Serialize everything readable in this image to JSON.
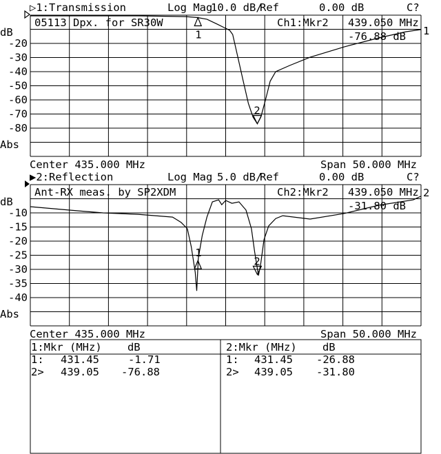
{
  "colors": {
    "background": "#ffffff",
    "foreground": "#000000"
  },
  "channel1": {
    "title": "▷1:Transmission",
    "format": "Log Mag",
    "scale": "10.0 dB/",
    "ref_label": "Ref",
    "ref_value": "0.00 dB",
    "cal_status": "C?",
    "annotation": "05113 Dpx. for SR30W",
    "marker_label": "Ch1:Mkr2",
    "marker_freq": "439.050 MHz",
    "marker_value": "-76.88 dB",
    "ref_marker": "1",
    "y_unit": "dB",
    "y_ticks": [
      "-20",
      "-30",
      "-40",
      "-50",
      "-60",
      "-70",
      "-80"
    ],
    "y_bottom": "Abs",
    "center": "Center 435.000 MHz",
    "span": "Span 50.000 MHz"
  },
  "channel2": {
    "title": "▶2:Reflection",
    "format": "Log Mag",
    "scale": "5.0 dB/",
    "ref_label": "Ref",
    "ref_value": "0.00 dB",
    "cal_status": "C?",
    "annotation": "Ant-RX meas. by SP2XDM",
    "marker_label": "Ch2:Mkr2",
    "marker_freq": "439.050 MHz",
    "marker_value": "-31.80 dB",
    "ref_marker": "2",
    "y_unit": "dB",
    "y_ticks": [
      "-10",
      "-15",
      "-20",
      "-25",
      "-30",
      "-35",
      "-40"
    ],
    "y_bottom": "Abs",
    "center": "Center 435.000 MHz",
    "span": "Span 50.000 MHz"
  },
  "marker_table": [
    {
      "header": "1:Mkr (MHz)    dB",
      "rows": [
        {
          "id": "1:",
          "freq": "431.45",
          "db": "-1.71"
        },
        {
          "id": "2>",
          "freq": "439.05",
          "db": "-76.88"
        }
      ]
    },
    {
      "header": "2:Mkr (MHz)    dB",
      "rows": [
        {
          "id": "1:",
          "freq": "431.45",
          "db": "-26.88"
        },
        {
          "id": "2>",
          "freq": "439.05",
          "db": "-31.80"
        }
      ]
    }
  ],
  "chart_data": [
    {
      "type": "line",
      "title": "1:Transmission",
      "xlabel": "",
      "ylabel": "dB",
      "xlim": [
        410,
        460
      ],
      "ylim": [
        -100,
        0
      ],
      "grid": true,
      "x_divisions": 10,
      "y_divisions": 10,
      "markers": [
        {
          "label": "1",
          "x": 431.45,
          "y": -1.71
        },
        {
          "label": "2",
          "x": 439.05,
          "y": -76.88
        }
      ],
      "x": [
        410,
        423.8,
        429.9,
        431.4,
        432.6,
        433.9,
        434.8,
        435.5,
        435.9,
        436.5,
        437.2,
        437.9,
        438.5,
        439.05,
        439.5,
        440.1,
        440.7,
        441.4,
        443.2,
        445.8,
        450.2,
        454.6,
        458.1,
        460
      ],
      "y": [
        -0.5,
        -0.5,
        -1.0,
        -1.7,
        -2.9,
        -6.3,
        -8.8,
        -10.7,
        -13.7,
        -28.3,
        -45.4,
        -62.4,
        -72.2,
        -76.9,
        -72.2,
        -60.0,
        -46.8,
        -40.0,
        -35.6,
        -29.8,
        -22.4,
        -16.1,
        -11.7,
        -10.2
      ]
    },
    {
      "type": "line",
      "title": "2:Reflection",
      "xlabel": "",
      "ylabel": "dB",
      "xlim": [
        410,
        460
      ],
      "ylim": [
        -50,
        0
      ],
      "grid": true,
      "x_divisions": 10,
      "y_divisions": 10,
      "markers": [
        {
          "label": "1",
          "x": 431.45,
          "y": -26.88
        },
        {
          "label": "2",
          "x": 439.05,
          "y": -31.8
        }
      ],
      "x": [
        410,
        414.9,
        419.3,
        423.8,
        428.2,
        429.3,
        430.1,
        430.6,
        431.1,
        431.3,
        431.4,
        431.5,
        432.0,
        432.6,
        433.3,
        434.1,
        434.5,
        435.0,
        435.8,
        436.7,
        437.6,
        438.3,
        438.7,
        439.2,
        439.5,
        439.9,
        440.5,
        441.4,
        442.3,
        445.8,
        450.2,
        454.6,
        459.0,
        460
      ],
      "y": [
        -7.8,
        -9.0,
        -10.0,
        -10.5,
        -11.5,
        -13.4,
        -15.6,
        -22.0,
        -31.0,
        -37.6,
        -31.7,
        -26.1,
        -18.0,
        -11.5,
        -6.1,
        -5.4,
        -7.1,
        -5.6,
        -6.6,
        -6.1,
        -9.0,
        -15.6,
        -23.7,
        -32.2,
        -27.8,
        -19.5,
        -14.6,
        -12.0,
        -11.0,
        -12.2,
        -10.2,
        -7.3,
        -5.4,
        -4.1
      ]
    }
  ]
}
